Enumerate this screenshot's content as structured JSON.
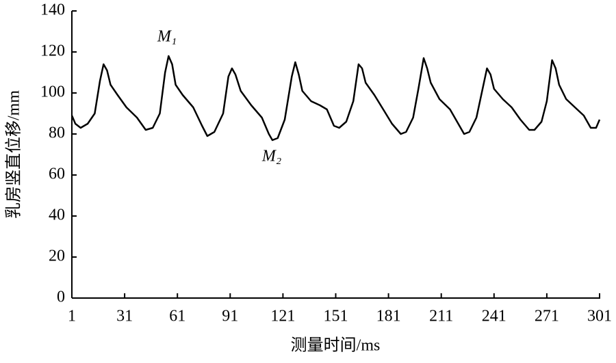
{
  "chart_data": {
    "type": "line",
    "xlabel": "测量时间/ms",
    "ylabel": "乳房竖直位移/mm",
    "annotations": [
      "M₁",
      "M₂"
    ],
    "xlim": [
      1,
      301
    ],
    "xticks": [
      1,
      31,
      61,
      91,
      121,
      151,
      181,
      211,
      241,
      271,
      301
    ],
    "ylim": [
      0,
      140
    ],
    "yticks": [
      0,
      20,
      40,
      60,
      80,
      100,
      120,
      140
    ],
    "grid": false,
    "series": [
      {
        "color": "#000000",
        "x": [
          1,
          3,
          6,
          10,
          14,
          17,
          19,
          21,
          23,
          27,
          32,
          38,
          43,
          47,
          51,
          54,
          56,
          58,
          60,
          64,
          70,
          75,
          78,
          82,
          87,
          90,
          92,
          94,
          97,
          103,
          109,
          113,
          115,
          118,
          122,
          126,
          128,
          130,
          132,
          137,
          142,
          146,
          150,
          153,
          157,
          161,
          164,
          166,
          168,
          173,
          178,
          183,
          188,
          191,
          195,
          198,
          201,
          203,
          205,
          210,
          216,
          220,
          224,
          227,
          231,
          234,
          237,
          239,
          241,
          246,
          251,
          256,
          261,
          264,
          268,
          271,
          274,
          276,
          278,
          282,
          287,
          292,
          296,
          299,
          301
        ],
        "values": [
          89,
          85,
          83,
          85,
          90,
          106,
          114,
          111,
          104,
          99,
          93,
          88,
          82,
          83,
          90,
          110,
          118,
          114,
          104,
          99,
          93,
          84,
          79,
          81,
          90,
          108,
          112,
          109,
          101,
          94,
          88,
          80,
          77,
          78,
          87,
          108,
          115,
          109,
          101,
          96,
          94,
          92,
          84,
          83,
          86,
          96,
          114,
          112,
          105,
          99,
          92,
          85,
          80,
          81,
          88,
          102,
          117,
          112,
          105,
          97,
          92,
          86,
          80,
          81,
          88,
          100,
          112,
          109,
          102,
          97,
          93,
          87,
          82,
          82,
          86,
          96,
          116,
          112,
          104,
          97,
          93,
          89,
          83,
          83,
          87
        ]
      }
    ]
  }
}
